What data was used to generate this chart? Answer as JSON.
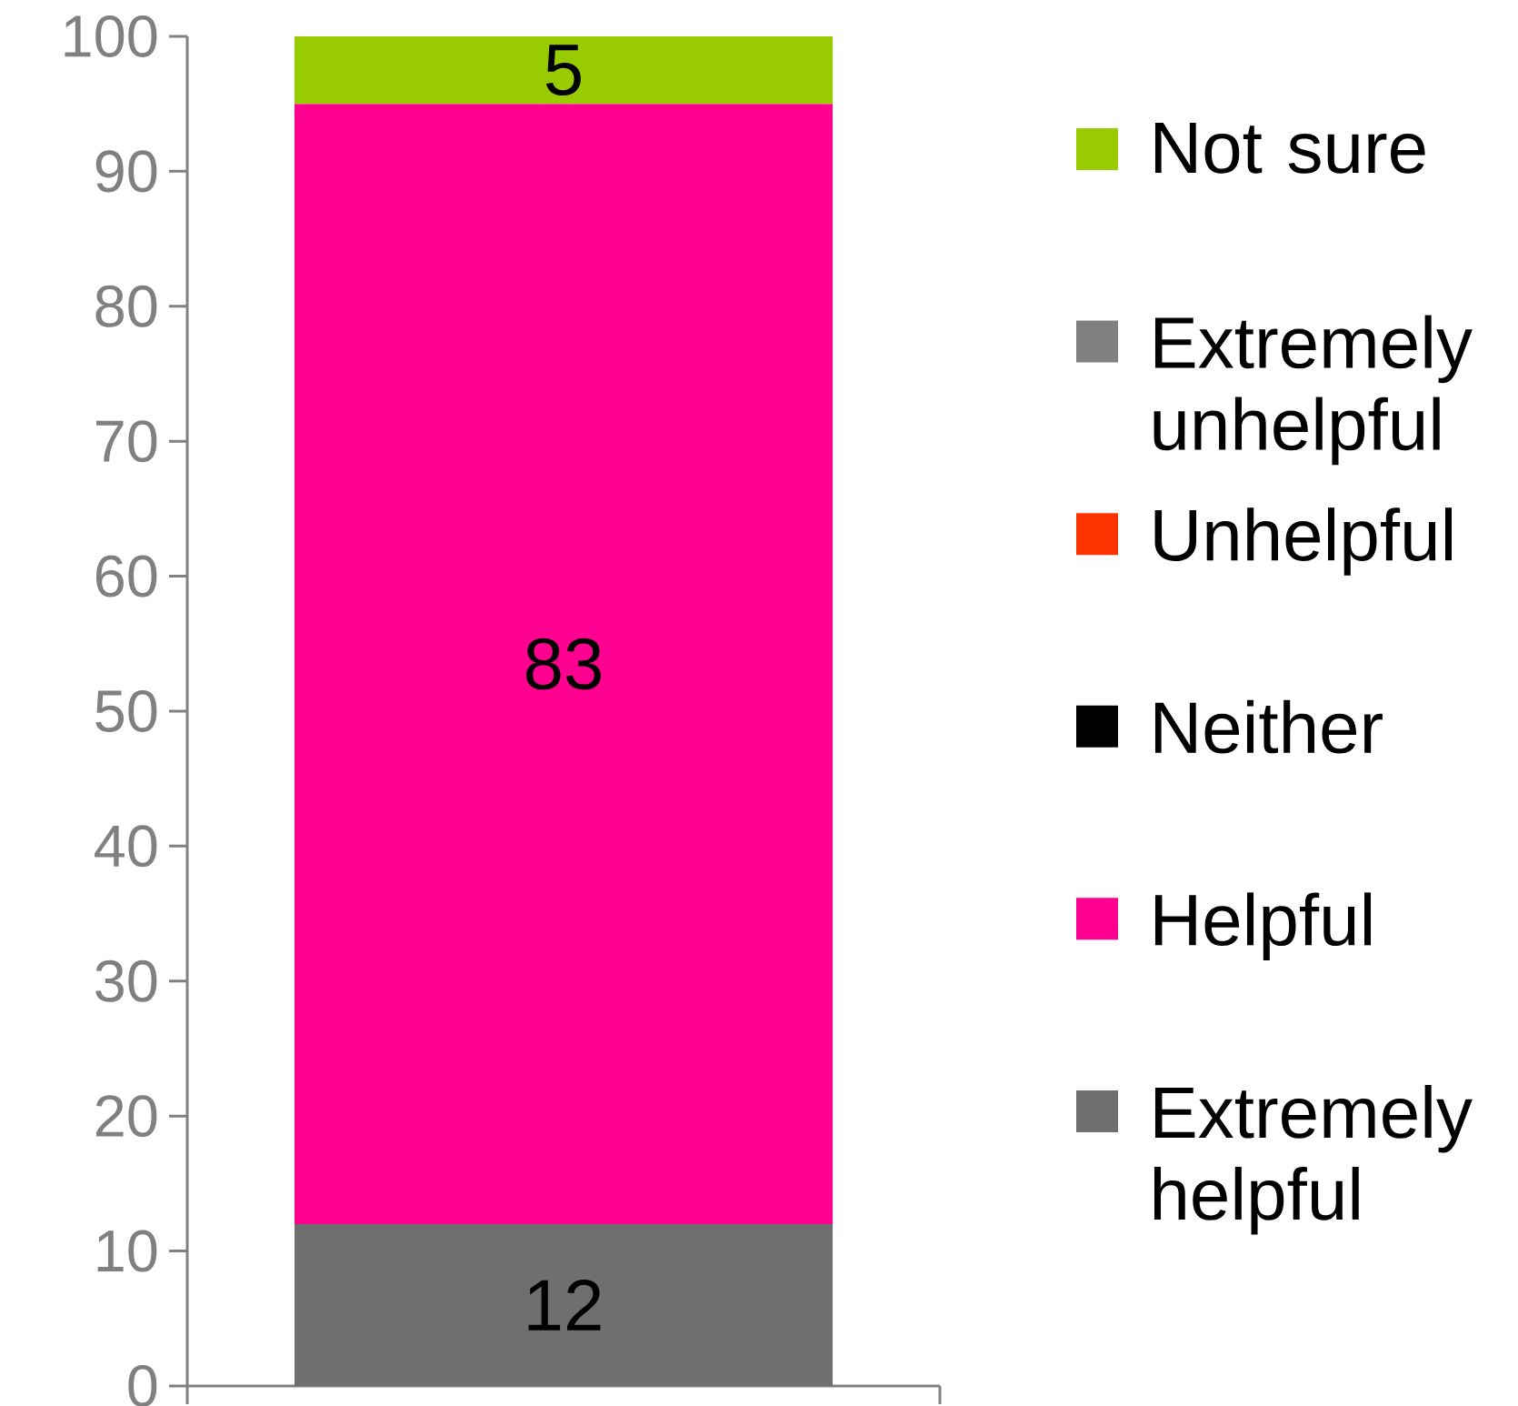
{
  "chart_data": {
    "type": "bar",
    "stacked": true,
    "categories": [
      null
    ],
    "series": [
      {
        "name": "Extremely helpful",
        "color": "#6f6f6f",
        "values": [
          12
        ],
        "value_labels": [
          "12"
        ]
      },
      {
        "name": "Helpful",
        "color": "#ff0090",
        "values": [
          83
        ],
        "value_labels": [
          "83"
        ]
      },
      {
        "name": "Neither",
        "color": "#000000",
        "values": [
          0
        ]
      },
      {
        "name": "Unhelpful",
        "color": "#ff3300",
        "values": [
          0
        ]
      },
      {
        "name": "Extremely unhelpful",
        "color": "#808080",
        "values": [
          0
        ]
      },
      {
        "name": "Not sure",
        "color": "#99cc00",
        "values": [
          5
        ],
        "value_labels": [
          "5"
        ]
      }
    ],
    "ylim": [
      0,
      100
    ],
    "yticks": [
      0,
      10,
      20,
      30,
      40,
      50,
      60,
      70,
      80,
      90,
      100
    ],
    "legend": "right",
    "grid": false
  }
}
